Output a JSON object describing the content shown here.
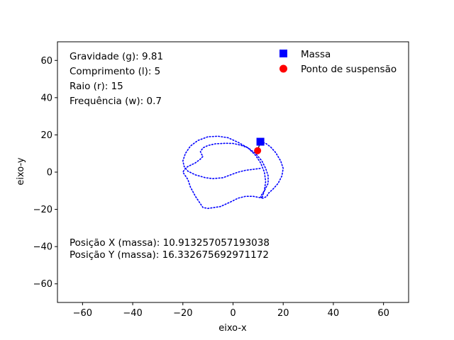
{
  "chart_data": {
    "type": "scatter",
    "title": "",
    "xlabel": "eixo-x",
    "ylabel": "eixo-y",
    "xlim": [
      -70,
      70
    ],
    "ylim": [
      -70,
      70
    ],
    "xticks": [
      -60,
      -40,
      -20,
      0,
      20,
      40,
      60
    ],
    "yticks": [
      -60,
      -40,
      -20,
      0,
      20,
      40,
      60
    ],
    "grid": false,
    "legend_position": "top-right",
    "annotations": {
      "gravity": "Gravidade (g): 9.81",
      "length": "Comprimento (l): 5",
      "radius": "Raio (r): 15",
      "frequency": "Frequência (w): 0.7",
      "pos_x": "Posição X (massa): 10.913257057193038",
      "pos_y": "Posição Y (massa): 16.332675692971172"
    },
    "series": [
      {
        "name": "Massa",
        "marker": "square",
        "color": "#0000ff",
        "x": [
          10.913257057193038
        ],
        "y": [
          16.332675692971172
        ]
      },
      {
        "name": "Ponto de suspensão",
        "marker": "circle",
        "color": "#ff0000",
        "x": [
          9.8
        ],
        "y": [
          11.5
        ]
      }
    ],
    "trajectory": {
      "color": "#0000ff",
      "style": "dotted",
      "x": [
        10.9,
        13,
        15,
        17,
        19,
        20,
        19.5,
        18,
        16,
        14,
        13.5,
        12,
        10,
        8,
        5,
        2,
        -1,
        -5,
        -10,
        -12,
        -13,
        -15,
        -17,
        -18,
        -20,
        -19,
        -18,
        -15,
        -13,
        -12,
        -12.5,
        -13,
        -12,
        -10,
        -7,
        -3,
        0,
        3,
        6,
        9,
        11.5,
        13,
        14,
        14,
        12.5,
        11,
        11.5,
        12.5,
        13,
        12.5,
        11,
        9,
        6,
        2,
        -2,
        -6,
        -10,
        -14,
        -17,
        -19,
        -20,
        -19.5,
        -18,
        -15,
        -11,
        -8,
        -4,
        -1,
        2,
        5,
        8,
        10.9
      ],
      "y": [
        16.3,
        15.5,
        13.5,
        10.5,
        6,
        2,
        -2,
        -6,
        -9,
        -11.5,
        -13,
        -14,
        -13.5,
        -13,
        -13,
        -14,
        -16,
        -18.5,
        -19.5,
        -19,
        -17,
        -13,
        -8,
        -4,
        0,
        2,
        3,
        5,
        7,
        8.5,
        9.5,
        11,
        13,
        14.3,
        15.2,
        15.5,
        15.4,
        14.5,
        13,
        10,
        6,
        2,
        -2,
        -6,
        -10,
        -13,
        -14,
        -10,
        -5,
        0,
        5,
        9,
        13,
        16,
        18.5,
        19.3,
        19,
        17,
        14,
        10,
        6,
        3,
        0.5,
        -1.5,
        -3,
        -3.5,
        -3,
        -1.5,
        0,
        1,
        1.5,
        2
      ]
    }
  }
}
